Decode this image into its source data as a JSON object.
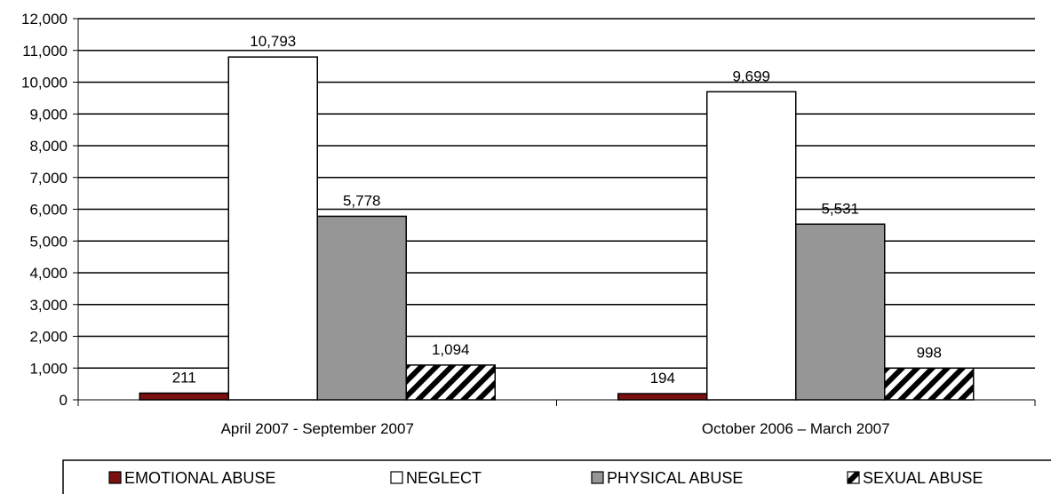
{
  "chart_data": {
    "type": "bar",
    "categories": [
      "April 2007 - September 2007",
      "October 2006 – March 2007"
    ],
    "series": [
      {
        "name": "EMOTIONAL ABUSE",
        "values": [
          211,
          194
        ],
        "color": "#7b1010",
        "pattern": "solid"
      },
      {
        "name": "NEGLECT",
        "values": [
          10793,
          9699
        ],
        "color": "#ffffff",
        "pattern": "solid"
      },
      {
        "name": "PHYSICAL ABUSE",
        "values": [
          5778,
          5531
        ],
        "color": "#969696",
        "pattern": "solid"
      },
      {
        "name": "SEXUAL ABUSE",
        "values": [
          1094,
          998
        ],
        "color": "#ffffff",
        "pattern": "diagonal-hatch"
      }
    ],
    "data_labels": [
      [
        "211",
        "10,793",
        "5,778",
        "1,094"
      ],
      [
        "194",
        "9,699",
        "5,531",
        "998"
      ]
    ],
    "y_ticks": [
      "0",
      "1,000",
      "2,000",
      "3,000",
      "4,000",
      "5,000",
      "6,000",
      "7,000",
      "8,000",
      "9,000",
      "10,000",
      "11,000",
      "12,000"
    ],
    "ylim": [
      0,
      12000
    ],
    "title": "",
    "xlabel": "",
    "ylabel": "",
    "grid": true,
    "legend_position": "bottom"
  }
}
